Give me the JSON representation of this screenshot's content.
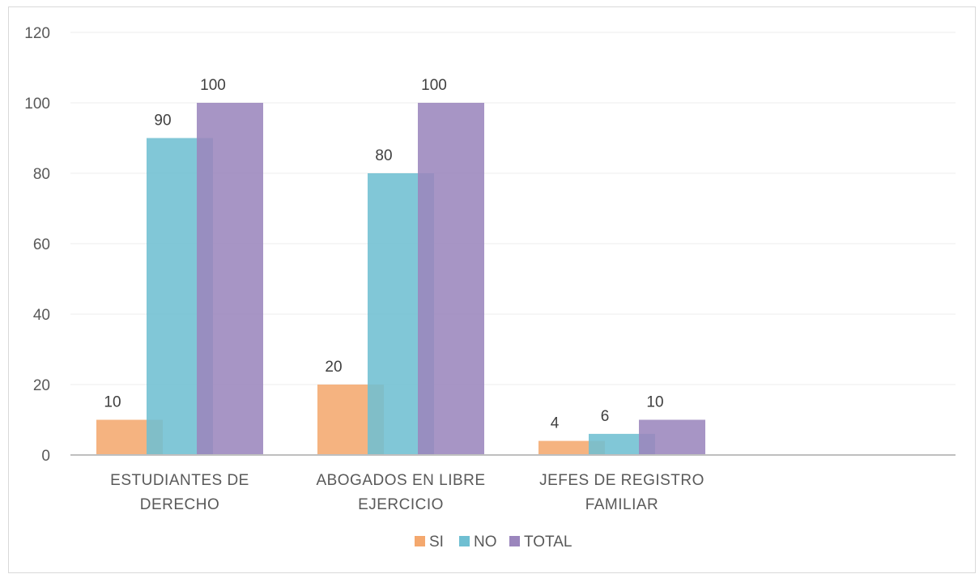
{
  "chart_data": {
    "type": "bar",
    "categories": [
      [
        "ESTUDIANTES DE",
        "DERECHO"
      ],
      [
        "ABOGADOS EN LIBRE",
        "EJERCICIO"
      ],
      [
        "JEFES DE REGISTRO",
        "FAMILIAR"
      ]
    ],
    "series": [
      {
        "name": "SI",
        "values": [
          10,
          20,
          4
        ],
        "color": "#f4a86e"
      },
      {
        "name": "NO",
        "values": [
          90,
          80,
          6
        ],
        "color": "#6fbfd2"
      },
      {
        "name": "TOTAL",
        "values": [
          100,
          100,
          10
        ],
        "color": "#9b86bd"
      }
    ],
    "yticks": [
      "0",
      "20",
      "40",
      "60",
      "80",
      "100",
      "120"
    ],
    "ylim": [
      0,
      120
    ],
    "title": "",
    "xlabel": "",
    "ylabel": "",
    "grid": true,
    "legend": "bottom"
  }
}
